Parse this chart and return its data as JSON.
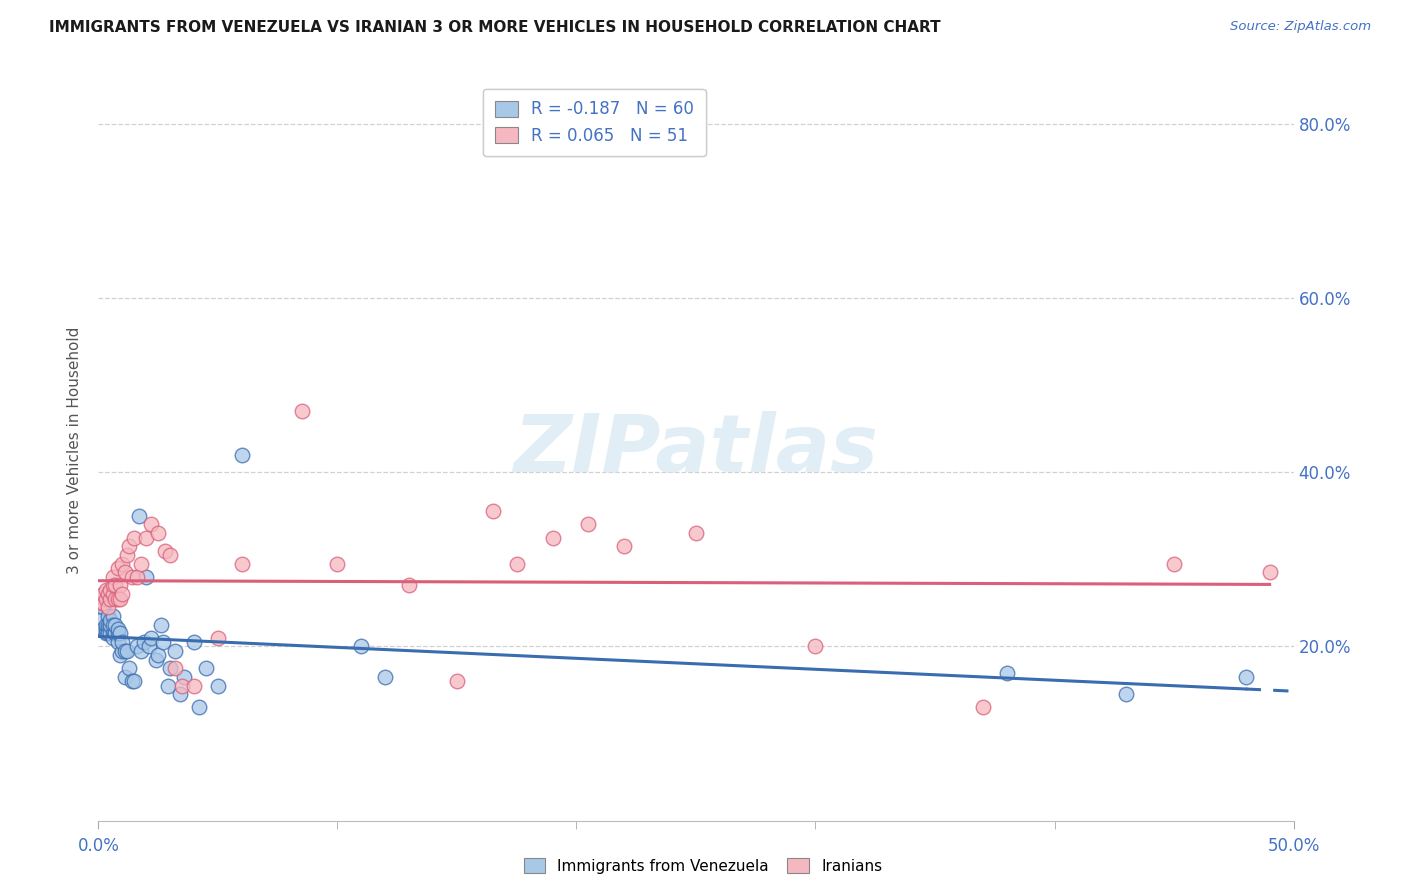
{
  "title": "IMMIGRANTS FROM VENEZUELA VS IRANIAN 3 OR MORE VEHICLES IN HOUSEHOLD CORRELATION CHART",
  "source": "Source: ZipAtlas.com",
  "ylabel": "3 or more Vehicles in Household",
  "xlim": [
    0.0,
    0.5
  ],
  "ylim": [
    0.0,
    0.85
  ],
  "yticks": [
    0.2,
    0.4,
    0.6,
    0.8
  ],
  "ytick_labels": [
    "20.0%",
    "40.0%",
    "60.0%",
    "80.0%"
  ],
  "xticks": [
    0.0,
    0.5
  ],
  "xtick_labels": [
    "0.0%",
    "50.0%"
  ],
  "xtick_minor": [
    0.1,
    0.2,
    0.3,
    0.4
  ],
  "legend1_R": "-0.187",
  "legend1_N": "60",
  "legend2_R": "0.065",
  "legend2_N": "51",
  "legend_series1": "Immigrants from Venezuela",
  "legend_series2": "Iranians",
  "blue_scatter_color": "#a8c8e8",
  "pink_scatter_color": "#f5b8c0",
  "blue_line_color": "#3a6cb0",
  "pink_line_color": "#d95f7a",
  "tick_color": "#4472c4",
  "watermark_color": "#d0e4f0",
  "watermark": "ZIPatlas",
  "blue_x": [
    0.001,
    0.002,
    0.002,
    0.003,
    0.003,
    0.003,
    0.004,
    0.004,
    0.004,
    0.004,
    0.005,
    0.005,
    0.005,
    0.005,
    0.006,
    0.006,
    0.006,
    0.006,
    0.007,
    0.007,
    0.007,
    0.008,
    0.008,
    0.008,
    0.009,
    0.009,
    0.01,
    0.01,
    0.011,
    0.011,
    0.012,
    0.013,
    0.014,
    0.015,
    0.016,
    0.017,
    0.018,
    0.019,
    0.02,
    0.021,
    0.022,
    0.024,
    0.025,
    0.026,
    0.027,
    0.029,
    0.03,
    0.032,
    0.034,
    0.036,
    0.04,
    0.042,
    0.045,
    0.05,
    0.06,
    0.11,
    0.12,
    0.38,
    0.43,
    0.48
  ],
  "blue_y": [
    0.23,
    0.22,
    0.245,
    0.215,
    0.22,
    0.225,
    0.235,
    0.22,
    0.215,
    0.225,
    0.225,
    0.215,
    0.225,
    0.23,
    0.235,
    0.215,
    0.225,
    0.21,
    0.215,
    0.215,
    0.225,
    0.205,
    0.215,
    0.22,
    0.19,
    0.215,
    0.195,
    0.205,
    0.165,
    0.195,
    0.195,
    0.175,
    0.16,
    0.16,
    0.2,
    0.35,
    0.195,
    0.205,
    0.28,
    0.2,
    0.21,
    0.185,
    0.19,
    0.225,
    0.205,
    0.155,
    0.175,
    0.195,
    0.145,
    0.165,
    0.205,
    0.13,
    0.175,
    0.155,
    0.42,
    0.2,
    0.165,
    0.17,
    0.145,
    0.165
  ],
  "pink_x": [
    0.001,
    0.002,
    0.002,
    0.003,
    0.003,
    0.004,
    0.004,
    0.005,
    0.005,
    0.006,
    0.006,
    0.006,
    0.007,
    0.007,
    0.008,
    0.008,
    0.009,
    0.009,
    0.01,
    0.01,
    0.011,
    0.012,
    0.013,
    0.014,
    0.015,
    0.016,
    0.018,
    0.02,
    0.022,
    0.025,
    0.028,
    0.03,
    0.032,
    0.035,
    0.04,
    0.05,
    0.06,
    0.085,
    0.1,
    0.13,
    0.15,
    0.165,
    0.175,
    0.19,
    0.205,
    0.22,
    0.25,
    0.3,
    0.37,
    0.45,
    0.49
  ],
  "pink_y": [
    0.25,
    0.25,
    0.26,
    0.255,
    0.265,
    0.245,
    0.26,
    0.255,
    0.265,
    0.26,
    0.27,
    0.28,
    0.27,
    0.255,
    0.255,
    0.29,
    0.27,
    0.255,
    0.26,
    0.295,
    0.285,
    0.305,
    0.315,
    0.28,
    0.325,
    0.28,
    0.295,
    0.325,
    0.34,
    0.33,
    0.31,
    0.305,
    0.175,
    0.155,
    0.155,
    0.21,
    0.295,
    0.47,
    0.295,
    0.27,
    0.16,
    0.355,
    0.295,
    0.325,
    0.34,
    0.315,
    0.33,
    0.2,
    0.13,
    0.295,
    0.285
  ]
}
